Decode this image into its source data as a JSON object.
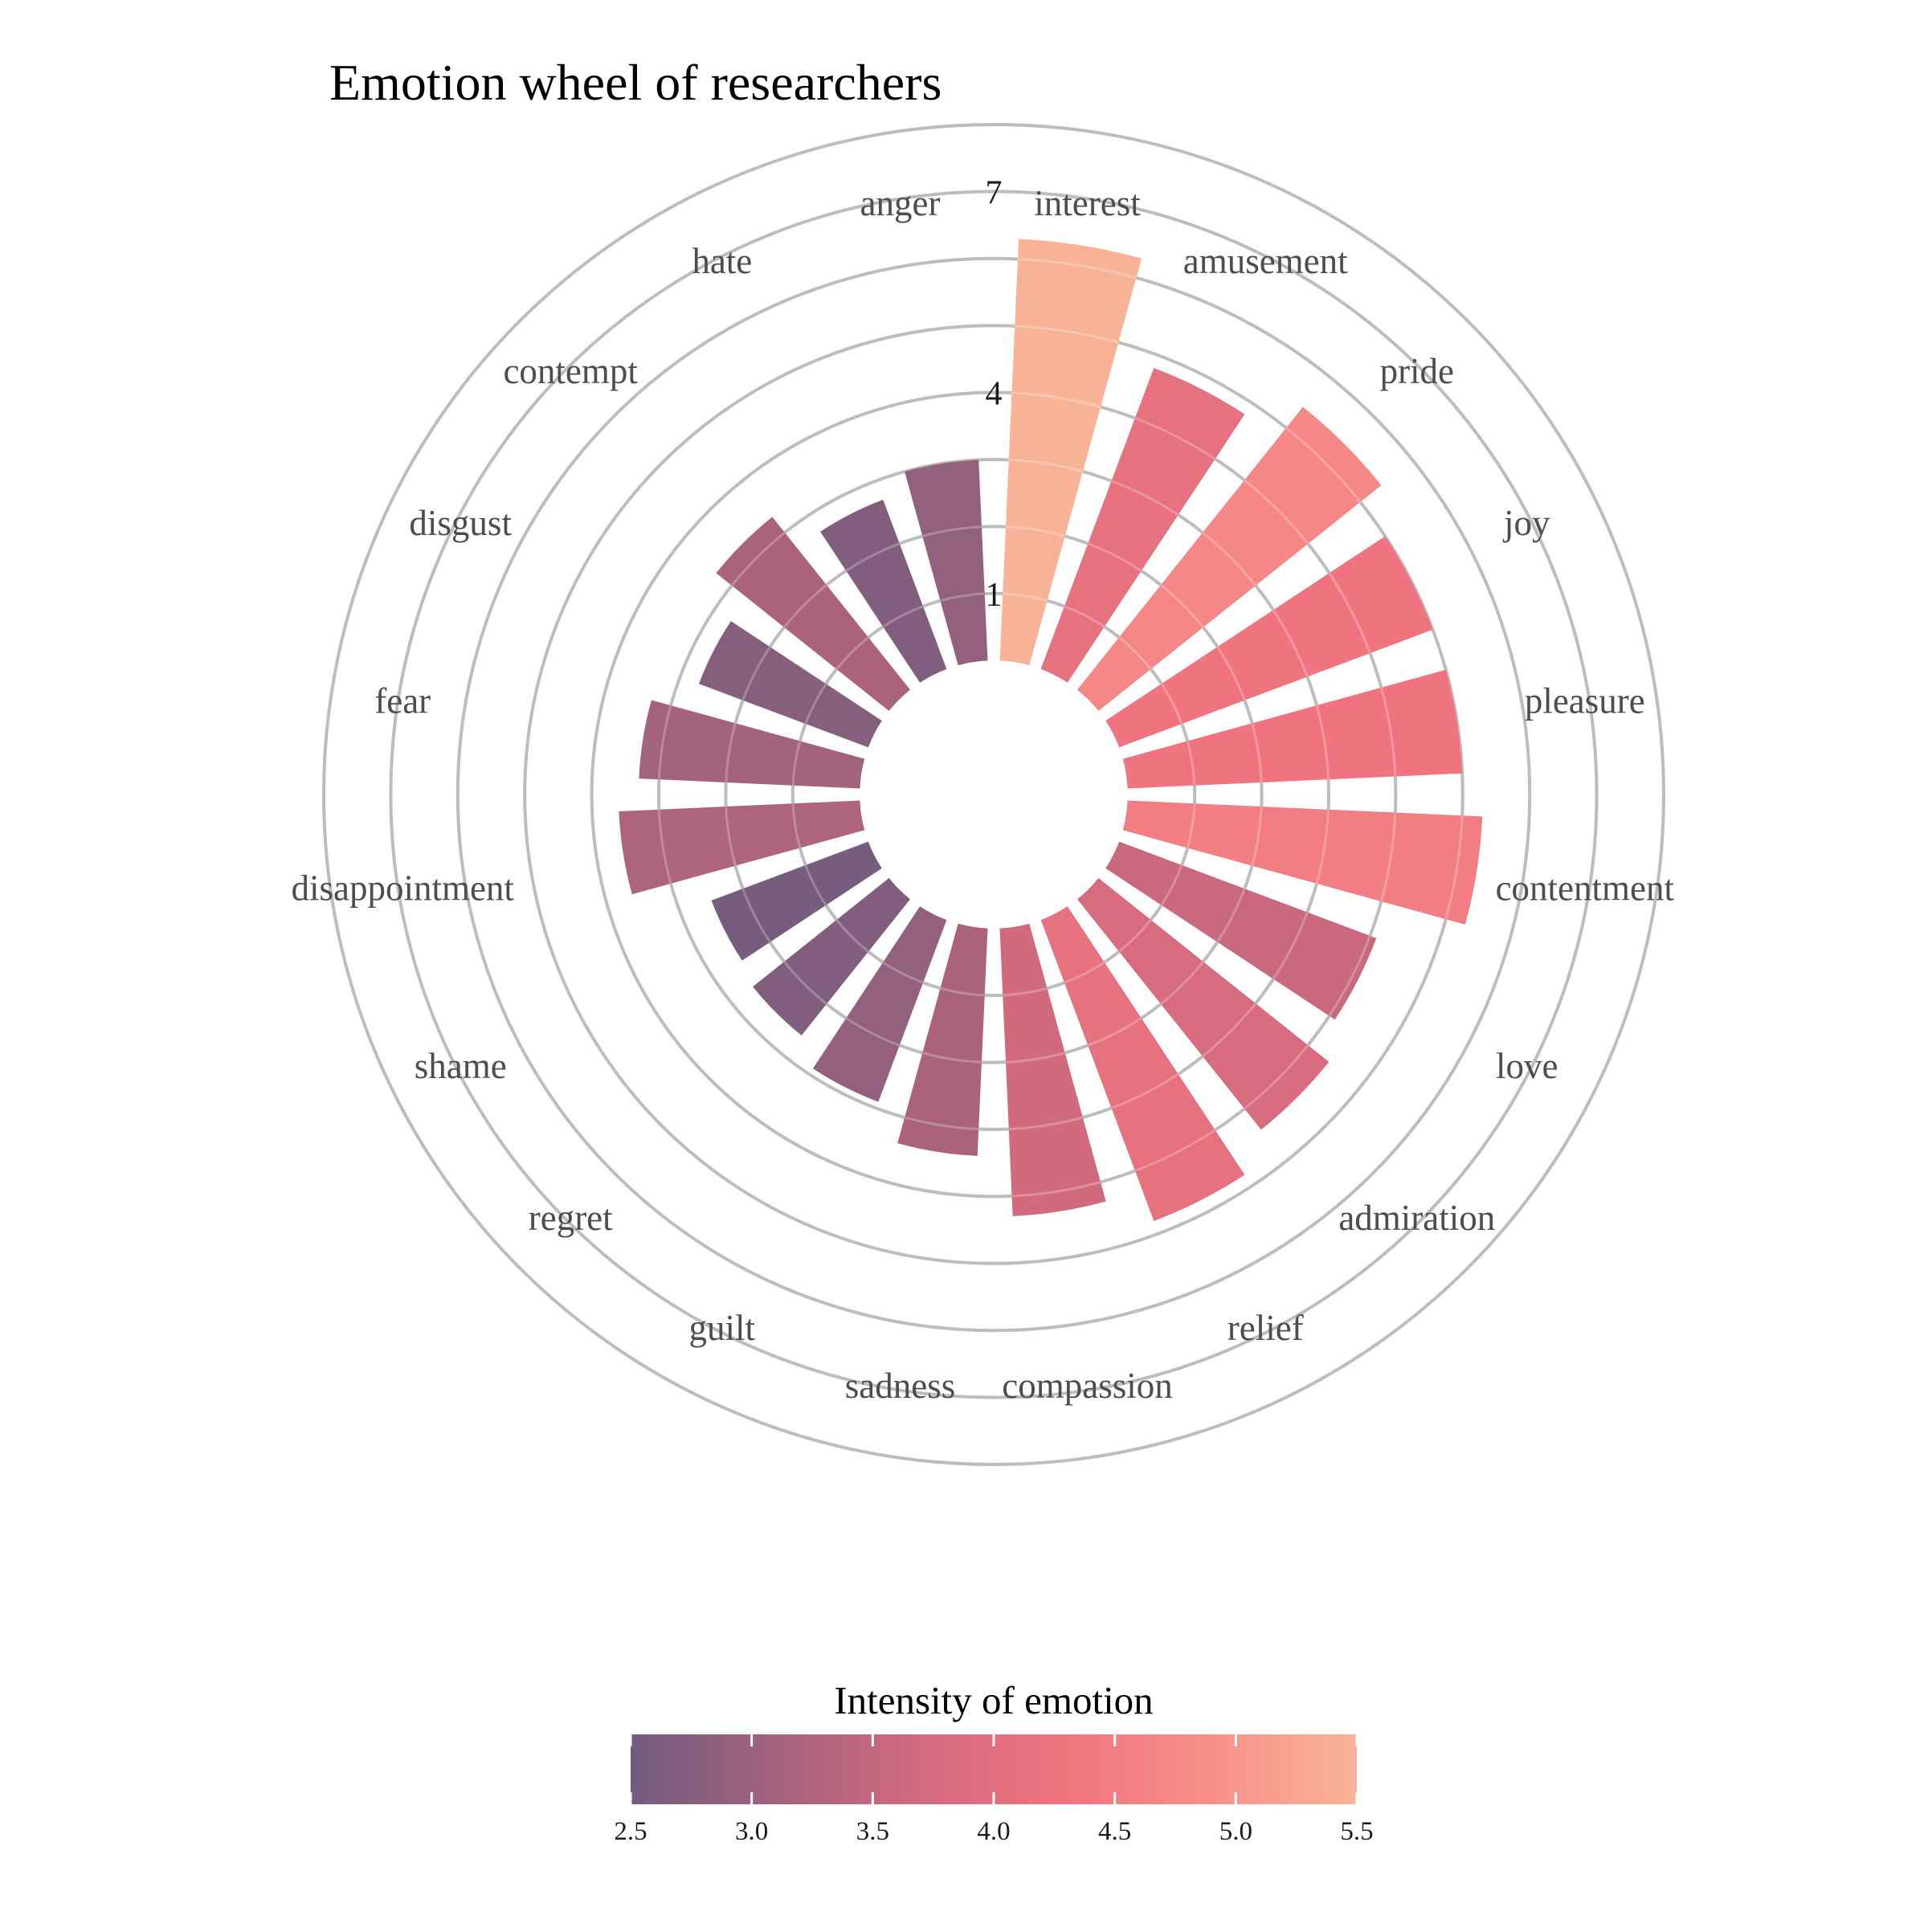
{
  "chart_data": {
    "type": "bar",
    "projection": "polar",
    "title": "Emotion wheel of researchers",
    "categories": [
      "interest",
      "amusement",
      "pride",
      "joy",
      "pleasure",
      "contentment",
      "love",
      "admiration",
      "relief",
      "compassion",
      "sadness",
      "guilt",
      "regret",
      "shame",
      "disappointment",
      "fear",
      "disgust",
      "contempt",
      "hate",
      "anger"
    ],
    "values": [
      6.3,
      4.8,
      5.4,
      5.0,
      5.0,
      5.3,
      4.1,
      4.4,
      4.8,
      4.3,
      3.4,
      2.9,
      2.6,
      2.5,
      3.6,
      3.3,
      2.7,
      3.3,
      2.7,
      3.0
    ],
    "intensity": [
      5.5,
      4.1,
      4.7,
      4.3,
      4.3,
      4.5,
      3.6,
      3.8,
      4.1,
      3.7,
      3.2,
      2.9,
      2.7,
      2.55,
      3.25,
      3.1,
      2.75,
      3.2,
      2.7,
      2.9
    ],
    "radial_ticks": [
      "1",
      "4",
      "7"
    ],
    "radial_tick_values": [
      1,
      4,
      7
    ],
    "rlim": [
      -2,
      8
    ],
    "gridlines": [
      1,
      2,
      3,
      4,
      5,
      6,
      7,
      8
    ],
    "grid": true,
    "colorbar": {
      "title": "Intensity of emotion",
      "ticks": [
        "2.5",
        "3.0",
        "3.5",
        "4.0",
        "4.5",
        "5.0",
        "5.5"
      ],
      "tick_values": [
        2.5,
        3.0,
        3.5,
        4.0,
        4.5,
        5.0,
        5.5
      ],
      "range": [
        2.5,
        5.5
      ],
      "colors": [
        "#725c7e",
        "#a3627d",
        "#d26a7e",
        "#f07480",
        "#f7908a",
        "#f8b397"
      ],
      "placement": "bottom"
    },
    "grid_color": "#bdbdbd"
  }
}
